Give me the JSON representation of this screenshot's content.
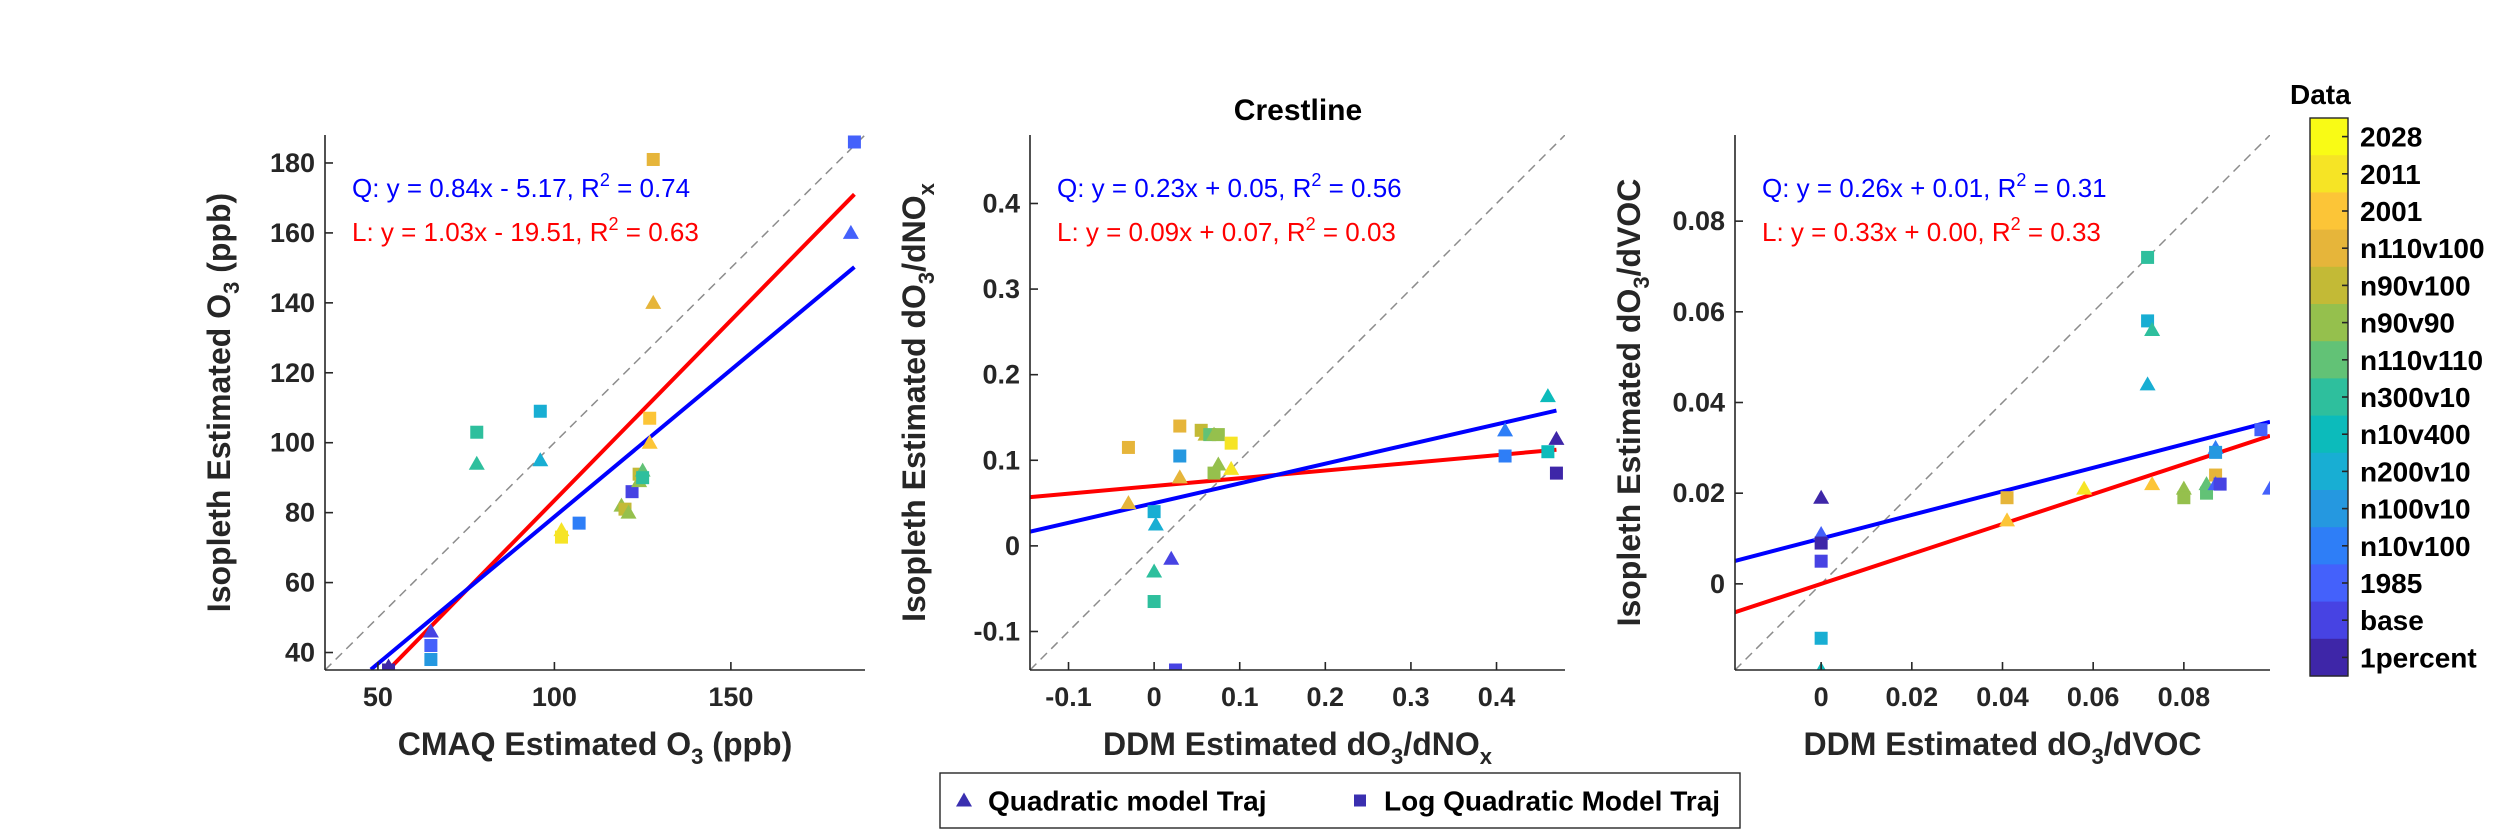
{
  "figure": {
    "title": "Crestline"
  },
  "chart_data": [
    {
      "type": "scatter",
      "xlabel": "CMAQ Estimated O3 (ppb)",
      "xlabel_parts": {
        "pre": "CMAQ Estimated O",
        "sub": "3",
        "post": " (ppb)"
      },
      "ylabel": "Isopleth Estimated O3 (ppb)",
      "ylabel_parts": {
        "pre": "Isopleth Estimated O",
        "sub": "3",
        "post": " (ppb)"
      },
      "xlim": [
        35,
        188
      ],
      "ylim": [
        35,
        188
      ],
      "xticks": [
        50,
        100,
        150
      ],
      "yticks": [
        40,
        60,
        80,
        100,
        120,
        140,
        160,
        180
      ],
      "one_to_one_line": true,
      "fits": [
        {
          "name": "Q",
          "color": "#0000ff",
          "slope": 0.84,
          "intercept": -5.17,
          "label": "Q: y = 0.84x - 5.17, R",
          "r2": " = 0.74"
        },
        {
          "name": "L",
          "color": "#ff0000",
          "slope": 1.03,
          "intercept": -19.51,
          "label": "L: y = 1.03x - 19.51, R",
          "r2": " = 0.63"
        }
      ],
      "points": [
        {
          "x": 53,
          "y": 36,
          "m": "tri",
          "c": 0
        },
        {
          "x": 53,
          "y": 35,
          "m": "sq",
          "c": 0
        },
        {
          "x": 65,
          "y": 46,
          "m": "tri",
          "c": 1
        },
        {
          "x": 65,
          "y": 42,
          "m": "sq",
          "c": 2
        },
        {
          "x": 65,
          "y": 38,
          "m": "sq",
          "c": 4
        },
        {
          "x": 78,
          "y": 103,
          "m": "sq",
          "c": 7
        },
        {
          "x": 78,
          "y": 94,
          "m": "tri",
          "c": 7
        },
        {
          "x": 96,
          "y": 109,
          "m": "sq",
          "c": 5
        },
        {
          "x": 96,
          "y": 95,
          "m": "tri",
          "c": 5
        },
        {
          "x": 102,
          "y": 75,
          "m": "tri",
          "c": 13
        },
        {
          "x": 102,
          "y": 73,
          "m": "sq",
          "c": 13
        },
        {
          "x": 107,
          "y": 77,
          "m": "sq",
          "c": 3
        },
        {
          "x": 119,
          "y": 82,
          "m": "tri",
          "c": 9
        },
        {
          "x": 120,
          "y": 81,
          "m": "sq",
          "c": 10
        },
        {
          "x": 121,
          "y": 80,
          "m": "tri",
          "c": 9
        },
        {
          "x": 122,
          "y": 86,
          "m": "sq",
          "c": 1
        },
        {
          "x": 124,
          "y": 89,
          "m": "tri",
          "c": 9
        },
        {
          "x": 124,
          "y": 91,
          "m": "sq",
          "c": 10
        },
        {
          "x": 125,
          "y": 92,
          "m": "tri",
          "c": 8
        },
        {
          "x": 125,
          "y": 90,
          "m": "sq",
          "c": 7
        },
        {
          "x": 127,
          "y": 100,
          "m": "tri",
          "c": 12
        },
        {
          "x": 127,
          "y": 107,
          "m": "sq",
          "c": 12
        },
        {
          "x": 128,
          "y": 140,
          "m": "tri",
          "c": 11
        },
        {
          "x": 128,
          "y": 181,
          "m": "sq",
          "c": 11
        },
        {
          "x": 185,
          "y": 186,
          "m": "sq",
          "c": 2
        },
        {
          "x": 184,
          "y": 160,
          "m": "tri",
          "c": 2
        }
      ]
    },
    {
      "type": "scatter",
      "xlabel": "DDM Estimated dO3/dNOx",
      "xlabel_parts": {
        "pre": "DDM Estimated dO",
        "sub": "3",
        "mid": "/dNO",
        "sub2": "x"
      },
      "ylabel": "Isopleth Estimated dO3/dNOx",
      "ylabel_parts": {
        "pre": "Isopleth Estimated dO",
        "sub": "3",
        "mid": "/dNO",
        "sub2": "x"
      },
      "xlim": [
        -0.145,
        0.48
      ],
      "ylim": [
        -0.145,
        0.48
      ],
      "xticks": [
        -0.1,
        0,
        0.1,
        0.2,
        0.3,
        0.4
      ],
      "yticks": [
        -0.1,
        0,
        0.1,
        0.2,
        0.3,
        0.4
      ],
      "one_to_one_line": true,
      "fits": [
        {
          "name": "Q",
          "color": "#0000ff",
          "slope": 0.23,
          "intercept": 0.05,
          "label": "Q: y = 0.23x + 0.05, R",
          "r2": " = 0.56"
        },
        {
          "name": "L",
          "color": "#ff0000",
          "slope": 0.09,
          "intercept": 0.07,
          "label": "L: y = 0.09x + 0.07, R",
          "r2": " = 0.03"
        }
      ],
      "points": [
        {
          "x": -0.03,
          "y": 0.115,
          "m": "sq",
          "c": 11
        },
        {
          "x": -0.03,
          "y": 0.05,
          "m": "tri",
          "c": 11
        },
        {
          "x": 0.0,
          "y": 0.04,
          "m": "sq",
          "c": 5
        },
        {
          "x": 0.002,
          "y": 0.025,
          "m": "tri",
          "c": 5
        },
        {
          "x": 0.0,
          "y": -0.03,
          "m": "tri",
          "c": 7
        },
        {
          "x": 0.0,
          "y": -0.065,
          "m": "sq",
          "c": 7
        },
        {
          "x": 0.02,
          "y": -0.015,
          "m": "tri",
          "c": 1
        },
        {
          "x": 0.025,
          "y": -0.145,
          "m": "sq",
          "c": 1
        },
        {
          "x": 0.03,
          "y": 0.14,
          "m": "sq",
          "c": 11
        },
        {
          "x": 0.03,
          "y": 0.08,
          "m": "tri",
          "c": 11
        },
        {
          "x": 0.03,
          "y": 0.105,
          "m": "sq",
          "c": 4
        },
        {
          "x": 0.055,
          "y": 0.135,
          "m": "sq",
          "c": 10
        },
        {
          "x": 0.06,
          "y": 0.13,
          "m": "tri",
          "c": 10
        },
        {
          "x": 0.065,
          "y": 0.13,
          "m": "sq",
          "c": 8
        },
        {
          "x": 0.07,
          "y": 0.13,
          "m": "tri",
          "c": 9
        },
        {
          "x": 0.075,
          "y": 0.13,
          "m": "sq",
          "c": 9
        },
        {
          "x": 0.07,
          "y": 0.085,
          "m": "sq",
          "c": 9
        },
        {
          "x": 0.075,
          "y": 0.095,
          "m": "tri",
          "c": 9
        },
        {
          "x": 0.09,
          "y": 0.12,
          "m": "sq",
          "c": 13
        },
        {
          "x": 0.09,
          "y": 0.09,
          "m": "tri",
          "c": 13
        },
        {
          "x": 0.41,
          "y": 0.135,
          "m": "tri",
          "c": 3
        },
        {
          "x": 0.41,
          "y": 0.105,
          "m": "sq",
          "c": 3
        },
        {
          "x": 0.46,
          "y": 0.175,
          "m": "tri",
          "c": 6
        },
        {
          "x": 0.46,
          "y": 0.11,
          "m": "sq",
          "c": 6
        },
        {
          "x": 0.47,
          "y": 0.125,
          "m": "tri",
          "c": 0
        },
        {
          "x": 0.47,
          "y": 0.085,
          "m": "sq",
          "c": 0
        }
      ]
    },
    {
      "type": "scatter",
      "xlabel": "DDM Estimated dO3/dVOC",
      "xlabel_parts": {
        "pre": "DDM Estimated dO",
        "sub": "3",
        "mid": "/dVOC",
        "sub2": ""
      },
      "ylabel": "Isopleth Estimated dO3/dVOC",
      "ylabel_parts": {
        "pre": "Isopleth Estimated dO",
        "sub": "3",
        "mid": "/dVOC",
        "sub2": ""
      },
      "xlim": [
        -0.019,
        0.099
      ],
      "ylim": [
        -0.019,
        0.099
      ],
      "xticks": [
        0,
        0.02,
        0.04,
        0.06,
        0.08
      ],
      "yticks": [
        0,
        0.02,
        0.04,
        0.06,
        0.08
      ],
      "one_to_one_line": true,
      "fits": [
        {
          "name": "Q",
          "color": "#0000ff",
          "slope": 0.26,
          "intercept": 0.01,
          "label": "Q: y = 0.26x + 0.01, R",
          "r2": " = 0.31"
        },
        {
          "name": "L",
          "color": "#ff0000",
          "slope": 0.33,
          "intercept": 0.0,
          "label": "L: y = 0.33x + 0.00, R",
          "r2": " = 0.33"
        }
      ],
      "points": [
        {
          "x": 0.0,
          "y": 0.019,
          "m": "tri",
          "c": 0
        },
        {
          "x": 0.0,
          "y": 0.011,
          "m": "tri",
          "c": 2
        },
        {
          "x": 0.0,
          "y": 0.009,
          "m": "sq",
          "c": 0
        },
        {
          "x": 0.0,
          "y": 0.005,
          "m": "sq",
          "c": 1
        },
        {
          "x": 0.0,
          "y": -0.012,
          "m": "sq",
          "c": 5
        },
        {
          "x": 0.0,
          "y": -0.019,
          "m": "tri",
          "c": 6
        },
        {
          "x": 0.041,
          "y": 0.019,
          "m": "sq",
          "c": 11
        },
        {
          "x": 0.041,
          "y": 0.014,
          "m": "tri",
          "c": 12
        },
        {
          "x": 0.058,
          "y": 0.021,
          "m": "tri",
          "c": 13
        },
        {
          "x": 0.072,
          "y": 0.072,
          "m": "sq",
          "c": 7
        },
        {
          "x": 0.072,
          "y": 0.058,
          "m": "sq",
          "c": 5
        },
        {
          "x": 0.073,
          "y": 0.056,
          "m": "tri",
          "c": 7
        },
        {
          "x": 0.072,
          "y": 0.044,
          "m": "tri",
          "c": 5
        },
        {
          "x": 0.073,
          "y": 0.022,
          "m": "tri",
          "c": 12
        },
        {
          "x": 0.08,
          "y": 0.021,
          "m": "tri",
          "c": 9
        },
        {
          "x": 0.08,
          "y": 0.019,
          "m": "sq",
          "c": 9
        },
        {
          "x": 0.085,
          "y": 0.022,
          "m": "tri",
          "c": 8
        },
        {
          "x": 0.085,
          "y": 0.02,
          "m": "sq",
          "c": 8
        },
        {
          "x": 0.087,
          "y": 0.03,
          "m": "tri",
          "c": 3
        },
        {
          "x": 0.087,
          "y": 0.029,
          "m": "sq",
          "c": 4
        },
        {
          "x": 0.087,
          "y": 0.024,
          "m": "sq",
          "c": 11
        },
        {
          "x": 0.087,
          "y": 0.022,
          "m": "tri",
          "c": 2
        },
        {
          "x": 0.088,
          "y": 0.022,
          "m": "sq",
          "c": 1
        },
        {
          "x": 0.097,
          "y": 0.034,
          "m": "sq",
          "c": 2
        },
        {
          "x": 0.099,
          "y": 0.021,
          "m": "tri",
          "c": 2
        }
      ]
    }
  ],
  "legend": {
    "items": [
      {
        "marker": "tri",
        "label": "Quadratic model Traj"
      },
      {
        "marker": "sq",
        "label": "Log Quadratic Model Traj"
      }
    ],
    "marker_color": "#3a2fb0"
  },
  "colorbar": {
    "title": "Data",
    "labels": [
      "2028",
      "2011",
      "2001",
      "n110v100",
      "n90v100",
      "n90v90",
      "n110v110",
      "n300v10",
      "n10v400",
      "n200v10",
      "n100v10",
      "n10v100",
      "1985",
      "base",
      "1percent"
    ],
    "colors": [
      "#3e26a8",
      "#4743e3",
      "#4461fb",
      "#2e7ef7",
      "#2598e0",
      "#18aed3",
      "#0cbbbb",
      "#2ebf9d",
      "#62c276",
      "#95c04d",
      "#c3ba36",
      "#e6b53a",
      "#fcc537",
      "#f6e425",
      "#f9fb15"
    ]
  }
}
